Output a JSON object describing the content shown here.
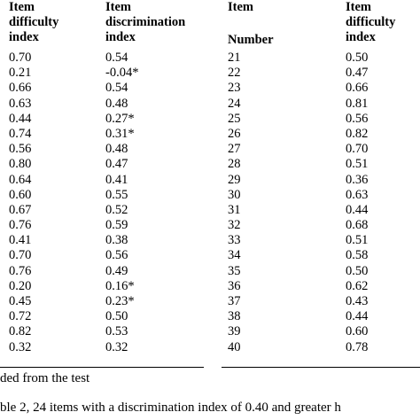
{
  "table": {
    "headers": {
      "left_difficulty": [
        "Item",
        "difficulty",
        "index"
      ],
      "left_discrimination": [
        "Item",
        "discrimination",
        "index"
      ],
      "right_item": [
        "Item",
        "Number"
      ],
      "right_difficulty": [
        "Item",
        "difficulty",
        "index"
      ]
    },
    "left_difficulty": [
      "0.70",
      "0.21",
      "0.66",
      "0.63",
      "0.44",
      "0.74",
      "0.56",
      "0.80",
      "0.64",
      "0.60",
      "0.67",
      "0.76",
      "0.41",
      "0.70",
      "0.76",
      "0.20",
      "0.45",
      "0.72",
      "0.82",
      "0.32"
    ],
    "left_discrimination": [
      "0.54",
      "-0.04*",
      "0.54",
      "0.48",
      "0.27*",
      "0.31*",
      "0.48",
      "0.47",
      "0.41",
      "0.55",
      "0.52",
      "0.59",
      "0.38",
      "0.56",
      "0.49",
      "0.16*",
      "0.23*",
      "0.50",
      "0.53",
      "0.32"
    ],
    "right_item_numbers": [
      "21",
      "22",
      "23",
      "24",
      "25",
      "26",
      "27",
      "28",
      "29",
      "30",
      "31",
      "32",
      "33",
      "34",
      "35",
      "36",
      "37",
      "38",
      "39",
      "40"
    ],
    "right_difficulty": [
      "0.50",
      "0.47",
      "0.66",
      "0.81",
      "0.56",
      "0.82",
      "0.70",
      "0.51",
      "0.36",
      "0.63",
      "0.44",
      "0.68",
      "0.51",
      "0.58",
      "0.50",
      "0.62",
      "0.43",
      "0.44",
      "0.60",
      "0.78"
    ]
  },
  "footnote": "ded from the test",
  "caption": "ble 2, 24 items with a discrimination index of 0.40 and greater h"
}
